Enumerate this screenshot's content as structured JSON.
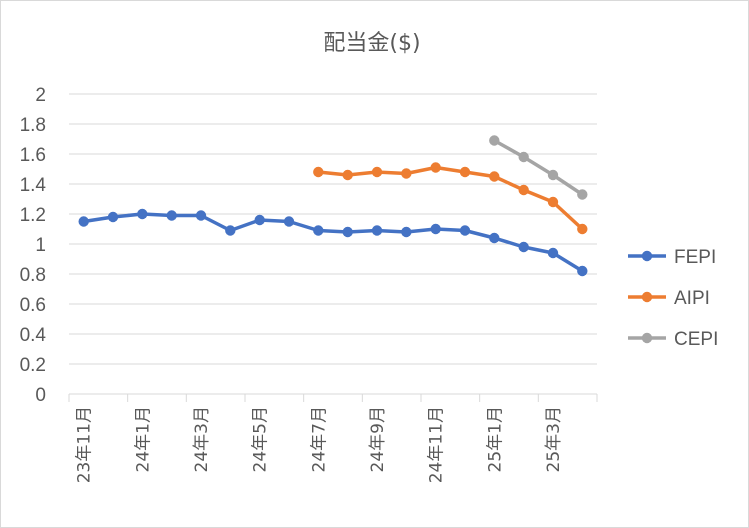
{
  "chart_data": {
    "type": "line",
    "title": "配当金($)",
    "xlabel": "",
    "ylabel": "",
    "ylim": [
      0,
      2
    ],
    "y_ticks": [
      "0",
      "0.2",
      "0.4",
      "0.6",
      "0.8",
      "1",
      "1.2",
      "1.4",
      "1.6",
      "1.8",
      "2"
    ],
    "x_ticks": [
      "23年11月",
      "24年1月",
      "24年3月",
      "24年5月",
      "24年7月",
      "24年9月",
      "24年11月",
      "25年1月",
      "25年3月"
    ],
    "grid": "horizontal",
    "legend_position": "right",
    "categories": [
      "23年11月",
      "23年12月",
      "24年1月",
      "24年2月",
      "24年3月",
      "24年4月",
      "24年5月",
      "24年6月",
      "24年7月",
      "24年8月",
      "24年9月",
      "24年10月",
      "24年11月",
      "24年12月",
      "25年1月",
      "25年2月",
      "25年3月",
      "25年4月"
    ],
    "series": [
      {
        "name": "FEPI",
        "color": "#4472c4",
        "values": [
          1.15,
          1.18,
          1.2,
          1.19,
          1.19,
          1.09,
          1.16,
          1.15,
          1.09,
          1.08,
          1.09,
          1.08,
          1.1,
          1.09,
          1.04,
          0.98,
          0.94,
          0.82
        ]
      },
      {
        "name": "AIPI",
        "color": "#ed7d31",
        "values": [
          null,
          null,
          null,
          null,
          null,
          null,
          null,
          null,
          1.48,
          1.46,
          1.48,
          1.47,
          1.51,
          1.48,
          1.45,
          1.36,
          1.28,
          1.1
        ]
      },
      {
        "name": "CEPI",
        "color": "#a5a5a5",
        "values": [
          null,
          null,
          null,
          null,
          null,
          null,
          null,
          null,
          null,
          null,
          null,
          null,
          null,
          null,
          1.69,
          1.58,
          1.46,
          1.33
        ]
      }
    ]
  }
}
